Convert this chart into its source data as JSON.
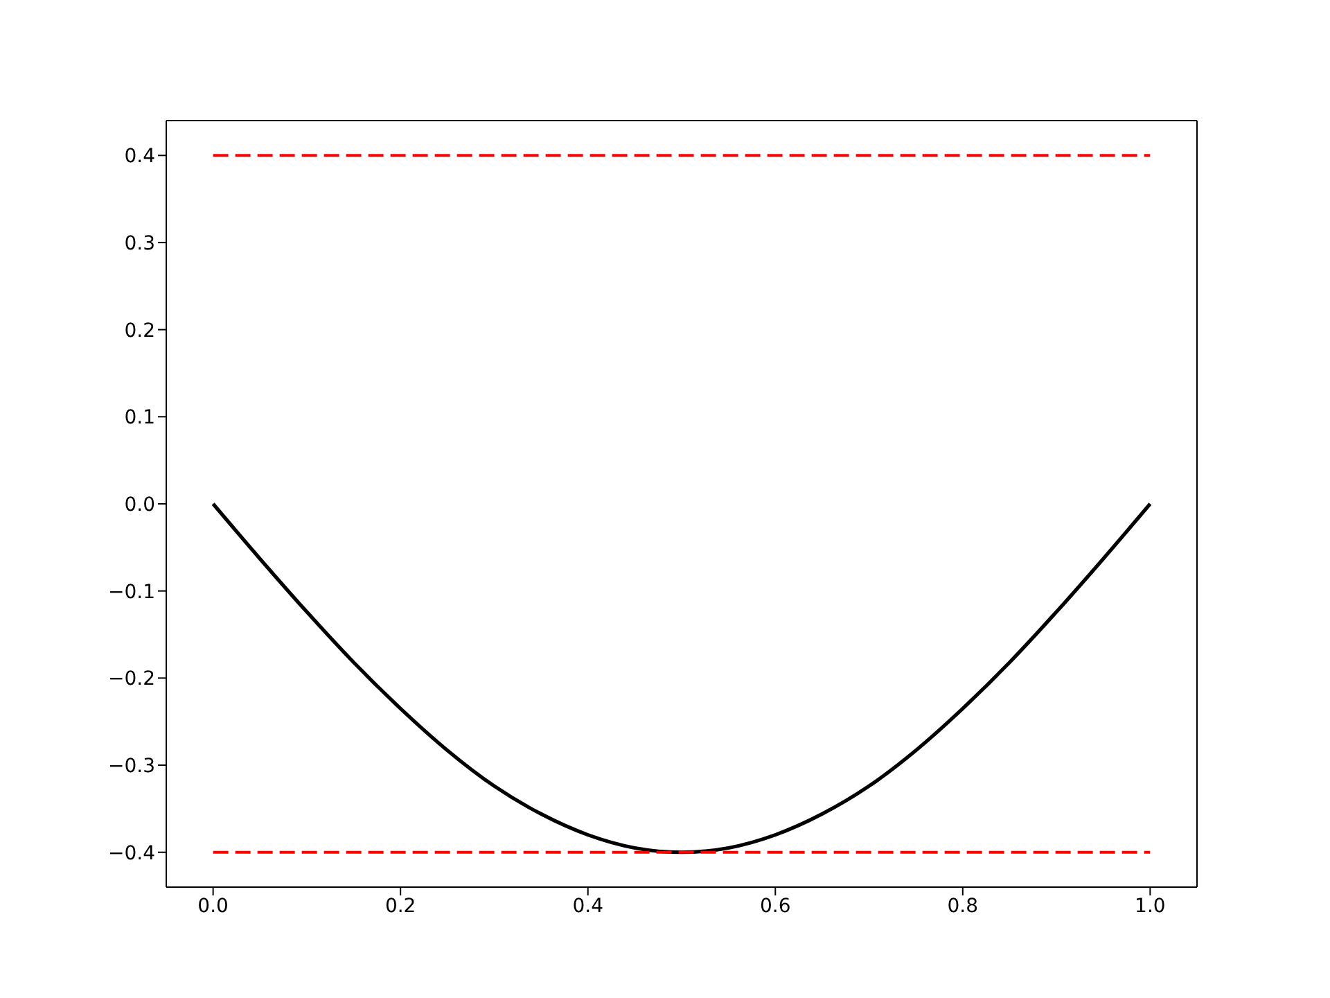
{
  "chart_data": {
    "type": "line",
    "line_style": "solid",
    "x": [
      0,
      0.05,
      0.1,
      0.15,
      0.2,
      0.25,
      0.3,
      0.35,
      0.4,
      0.45,
      0.5,
      0.55,
      0.6,
      0.65,
      0.7,
      0.75,
      0.8,
      0.85,
      0.9,
      0.95,
      1
    ],
    "xlim": [
      -0.05,
      1.05
    ],
    "ylim": [
      -0.44,
      0.44
    ],
    "xticks": [
      {
        "value": 0,
        "label": "0.0"
      },
      0.2,
      0.4,
      0.6,
      0.8,
      {
        "value": 1,
        "label": "1.0"
      }
    ],
    "yticks": [
      {
        "value": -0.4,
        "label": "−0.4"
      },
      {
        "value": -0.3,
        "label": "−0.3"
      },
      {
        "value": -0.2,
        "label": "−0.2"
      },
      {
        "value": -0.1,
        "label": "−0.1"
      },
      {
        "value": 0,
        "label": "0.0"
      },
      0.1,
      0.2,
      0.3,
      0.4
    ],
    "series": [
      {
        "color": "#000000",
        "values": [
          0,
          -0.063,
          -0.124,
          -0.182,
          -0.235,
          -0.283,
          -0.324,
          -0.356,
          -0.38,
          -0.395,
          -0.4,
          -0.395,
          -0.38,
          -0.356,
          -0.324,
          -0.283,
          -0.235,
          -0.182,
          -0.124,
          -0.063,
          0
        ]
      },
      {
        "color": "#ff0000",
        "line_style": "dashed",
        "values": [
          0.4,
          0.4,
          0.4,
          0.4,
          0.4,
          0.4,
          0.4,
          0.4,
          0.4,
          0.4,
          0.4,
          0.4,
          0.4,
          0.4,
          0.4,
          0.4,
          0.4,
          0.4,
          0.4,
          0.4,
          0.4
        ]
      },
      {
        "color": "#ff0000",
        "line_style": "dashed",
        "values": [
          -0.4,
          -0.4,
          -0.4,
          -0.4,
          -0.4,
          -0.4,
          -0.4,
          -0.4,
          -0.4,
          -0.4,
          -0.4,
          -0.4,
          -0.4,
          -0.4,
          -0.4,
          -0.4,
          -0.4,
          -0.4,
          -0.4,
          -0.4,
          -0.4
        ]
      }
    ]
  }
}
